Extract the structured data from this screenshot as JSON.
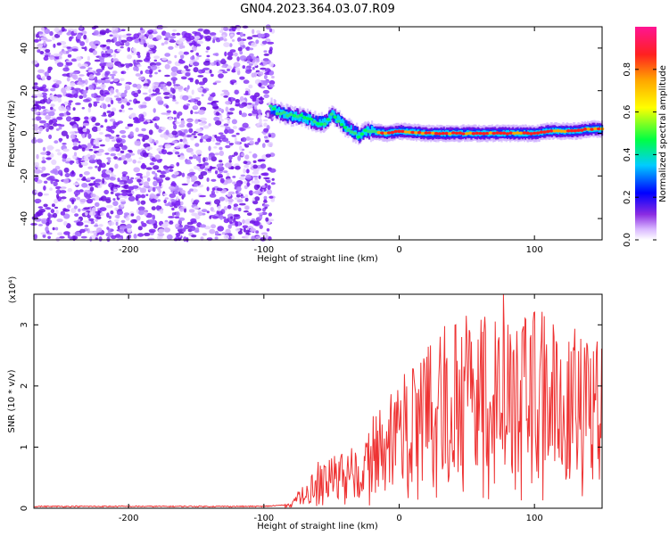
{
  "title": "GN04.2023.364.03.07.R09",
  "colors": {
    "signal_line": "#ee3333",
    "noise": "#7a1ff2",
    "colormap": [
      "#ffffff",
      "#d9b8ff",
      "#8a2be2",
      "#0000ff",
      "#00ccff",
      "#00ff44",
      "#ffff00",
      "#ffa500",
      "#ff2020",
      "#ff1493"
    ]
  },
  "chart_data": [
    {
      "type": "heatmap",
      "xlabel": "Height of straight line (km)",
      "ylabel": "Frequency (Hz)",
      "xlim": [
        -270,
        150
      ],
      "ylim": [
        -50,
        50
      ],
      "xticks": [
        -200,
        -100,
        0,
        100
      ],
      "xtick_labels": [
        "-200",
        "-100",
        "0",
        "100"
      ],
      "yticks": [
        -40,
        -20,
        0,
        20,
        40
      ],
      "ytick_labels": [
        "-40",
        "-20",
        "0",
        "20",
        "40"
      ],
      "colorbar": {
        "label": "Normalized spectral amplitude",
        "range": [
          0,
          1
        ],
        "ticks": [
          0.0,
          0.2,
          0.4,
          0.6,
          0.8
        ],
        "tick_labels": [
          "0.0",
          "0.2",
          "0.4",
          "0.6",
          "0.8"
        ]
      },
      "noise_region_x": [
        -270,
        -93
      ],
      "signal_track": {
        "x": [
          -95,
          -90,
          -85,
          -80,
          -75,
          -70,
          -65,
          -60,
          -55,
          -50,
          -45,
          -40,
          -35,
          -30,
          -25,
          -20,
          -10,
          0,
          20,
          40,
          60,
          80,
          100,
          110,
          120,
          130,
          140,
          150
        ],
        "y": [
          12,
          10,
          9,
          8,
          8,
          7,
          6,
          5,
          5,
          9,
          6,
          3,
          1,
          -1,
          1,
          1,
          0,
          1,
          0,
          0,
          0,
          0,
          0,
          1,
          1,
          1,
          2,
          2
        ]
      }
    },
    {
      "type": "line",
      "xlabel": "Height of straight line (km)",
      "ylabel": "SNR (10 * v/v)",
      "y_multiplier": "(x10⁴)",
      "xlim": [
        -270,
        150
      ],
      "ylim": [
        0,
        3.5
      ],
      "xticks": [
        -200,
        -100,
        0,
        100
      ],
      "xtick_labels": [
        "-200",
        "-100",
        "0",
        "100"
      ],
      "yticks": [
        0,
        1,
        2,
        3
      ],
      "ytick_labels": [
        "0",
        "1",
        "2",
        "3"
      ],
      "envelope": {
        "x": [
          -270,
          -100,
          -80,
          -70,
          -60,
          -50,
          -40,
          -30,
          -20,
          -10,
          0,
          10,
          20,
          30,
          40,
          50,
          60,
          70,
          80,
          90,
          100,
          110,
          120,
          130,
          140,
          150
        ],
        "y": [
          0.02,
          0.02,
          0.05,
          0.25,
          0.45,
          0.55,
          0.6,
          0.65,
          0.85,
          1.05,
          1.3,
          1.5,
          1.7,
          1.8,
          1.9,
          2.0,
          2.0,
          2.1,
          2.05,
          2.0,
          1.9,
          1.9,
          1.85,
          1.8,
          1.75,
          1.7
        ]
      }
    }
  ]
}
